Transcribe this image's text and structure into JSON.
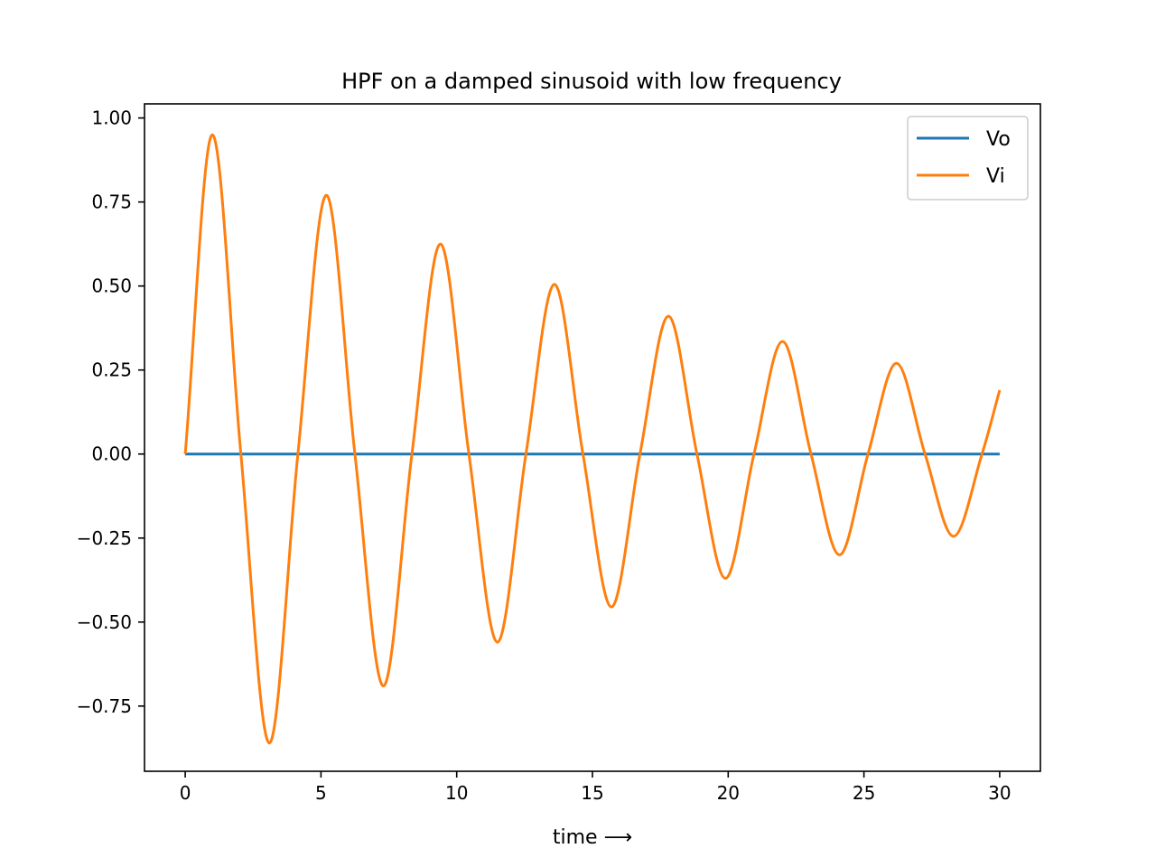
{
  "chart_data": {
    "type": "line",
    "title": "HPF on a damped sinusoid with low frequency",
    "xlabel": "time ⟶",
    "ylabel": "",
    "xlim": [
      -1.5,
      31.5
    ],
    "ylim": [
      -0.944,
      1.042
    ],
    "x_ticks": [
      0,
      5,
      10,
      15,
      20,
      25,
      30
    ],
    "x_tick_labels": [
      "0",
      "5",
      "10",
      "15",
      "20",
      "25",
      "30"
    ],
    "y_ticks": [
      1.0,
      0.75,
      0.5,
      0.25,
      0.0,
      -0.25,
      -0.5,
      -0.75
    ],
    "y_tick_labels": [
      "1.00",
      "0.75",
      "0.50",
      "0.25",
      "0.00",
      "−0.25",
      "−0.50",
      "−0.75"
    ],
    "grid": false,
    "legend_position": "top-right",
    "series": [
      {
        "name": "Vo",
        "color": "#1f77b4",
        "x": [
          0,
          30
        ],
        "y": [
          0,
          0
        ]
      },
      {
        "name": "Vi",
        "color": "#ff7f0e",
        "x": [
          0,
          1.0,
          2.05,
          3.1,
          4.15,
          5.2,
          6.25,
          7.3,
          8.35,
          9.4,
          10.45,
          11.5,
          12.55,
          13.6,
          14.65,
          15.7,
          16.75,
          17.8,
          18.85,
          19.9,
          20.95,
          22.0,
          23.05,
          24.1,
          25.15,
          26.2,
          27.25,
          28.3,
          29.35,
          30.0
        ],
        "y": [
          0,
          0.95,
          0,
          -0.86,
          0,
          0.77,
          0,
          -0.69,
          0,
          0.625,
          0,
          -0.56,
          0,
          0.505,
          0,
          -0.455,
          0,
          0.41,
          0,
          -0.37,
          0,
          0.335,
          0,
          -0.3,
          0,
          0.27,
          0,
          -0.245,
          0,
          0.19
        ]
      }
    ]
  }
}
